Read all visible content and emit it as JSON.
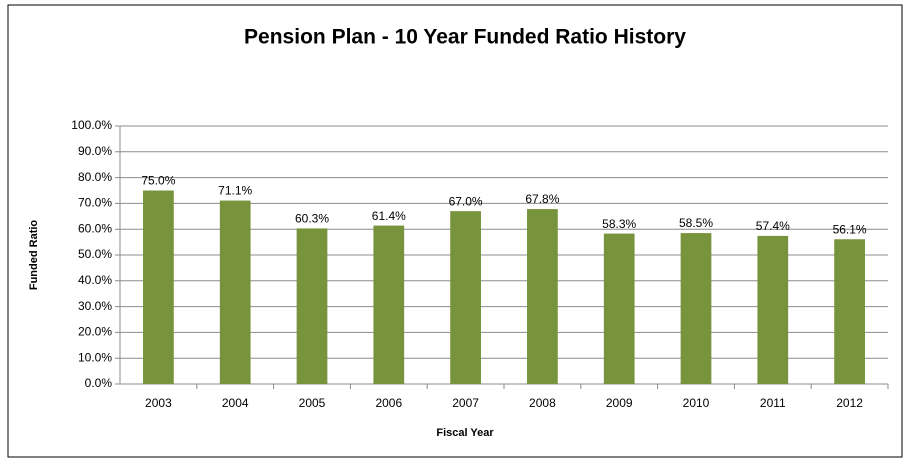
{
  "chart_data": {
    "type": "bar",
    "title": "Pension Plan - 10 Year Funded Ratio History",
    "x_label": "Fiscal Year",
    "y_label": "Funded Ratio",
    "categories": [
      "2003",
      "2004",
      "2005",
      "2006",
      "2007",
      "2008",
      "2009",
      "2010",
      "2011",
      "2012"
    ],
    "values": [
      75.0,
      71.1,
      60.3,
      61.4,
      67.0,
      67.8,
      58.3,
      58.5,
      57.4,
      56.1
    ],
    "value_labels": [
      "75.0%",
      "71.1%",
      "60.3%",
      "61.4%",
      "67.0%",
      "67.8%",
      "58.3%",
      "58.5%",
      "57.4%",
      "56.1%"
    ],
    "color": "#77933c",
    "ylim": [
      0,
      100
    ],
    "yticks": [
      {
        "value": 0,
        "label": "0.0%"
      },
      {
        "value": 10,
        "label": "10.0%"
      },
      {
        "value": 20,
        "label": "20.0%"
      },
      {
        "value": 30,
        "label": "30.0%"
      },
      {
        "value": 40,
        "label": "40.0%"
      },
      {
        "value": 50,
        "label": "50.0%"
      },
      {
        "value": 60,
        "label": "60.0%"
      },
      {
        "value": 70,
        "label": "70.0%"
      },
      {
        "value": 80,
        "label": "80.0%"
      },
      {
        "value": 90,
        "label": "90.0%"
      },
      {
        "value": 100,
        "label": "100.0%"
      }
    ],
    "grid": true
  }
}
